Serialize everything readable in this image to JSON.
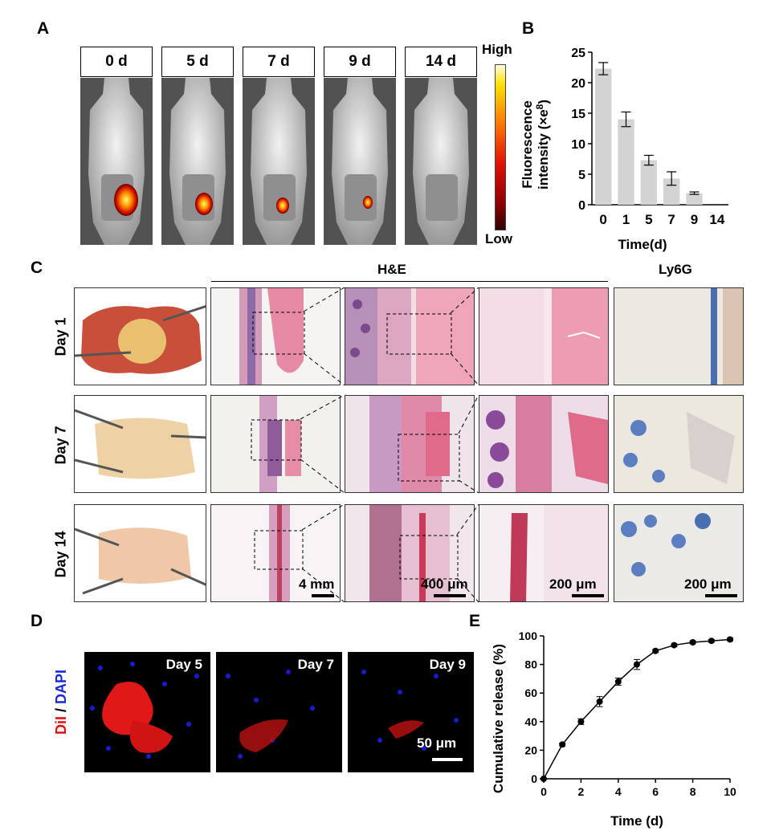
{
  "panels": {
    "a": "A",
    "b": "B",
    "c": "C",
    "d": "D",
    "e": "E"
  },
  "panel_a": {
    "timepoints": [
      "0 d",
      "5 d",
      "7 d",
      "9 d",
      "14 d"
    ],
    "signal_level": [
      1.0,
      0.75,
      0.55,
      0.4,
      0.0
    ],
    "colorbar": {
      "high": "High",
      "low": "Low"
    }
  },
  "panel_c": {
    "he_title": "H&E",
    "ly6g_title": "Ly6G",
    "rows": [
      "Day 1",
      "Day 7",
      "Day 14"
    ],
    "scalebars": [
      "4 mm",
      "400 μm",
      "200 μm",
      "200 μm"
    ]
  },
  "panel_d": {
    "stain_red": "DiI",
    "stain_sep": " / ",
    "stain_blue": "DAPI",
    "days": [
      "Day 5",
      "Day 7",
      "Day 9"
    ],
    "scalebar": "50 μm"
  },
  "chart_data": [
    {
      "type": "bar",
      "panel": "B",
      "categories": [
        "0",
        "1",
        "5",
        "7",
        "9",
        "14"
      ],
      "values": [
        22.3,
        14.0,
        7.3,
        4.3,
        1.9,
        0
      ],
      "errors": [
        1.0,
        1.2,
        0.8,
        1.1,
        0.2,
        0
      ],
      "xlabel": "Time(d)",
      "ylabel_line1": "Fluorescence",
      "ylabel_line2": "intensity (×e",
      "ylabel_sup": "8",
      "ylabel_close": ")",
      "ylim": [
        0,
        25
      ],
      "yticks": [
        "0",
        "5",
        "10",
        "15",
        "20",
        "25"
      ],
      "bar_color": "#d3d3d3"
    },
    {
      "type": "line",
      "panel": "E",
      "x": [
        0,
        1,
        2,
        3,
        4,
        5,
        6,
        7,
        8,
        9,
        10
      ],
      "y": [
        0,
        24,
        40,
        54,
        68,
        80,
        89.5,
        93.5,
        95.5,
        96.5,
        97.5
      ],
      "errors": [
        0,
        1,
        2,
        3.5,
        2.5,
        3.5,
        1,
        1,
        1,
        1,
        1
      ],
      "xlabel": "Time (d)",
      "ylabel": "Cumulative release (%)",
      "xlim": [
        0,
        10
      ],
      "ylim": [
        0,
        100
      ],
      "xticks": [
        "0",
        "2",
        "4",
        "6",
        "8",
        "10"
      ],
      "yticks": [
        "0",
        "20",
        "40",
        "60",
        "80",
        "100"
      ]
    }
  ]
}
